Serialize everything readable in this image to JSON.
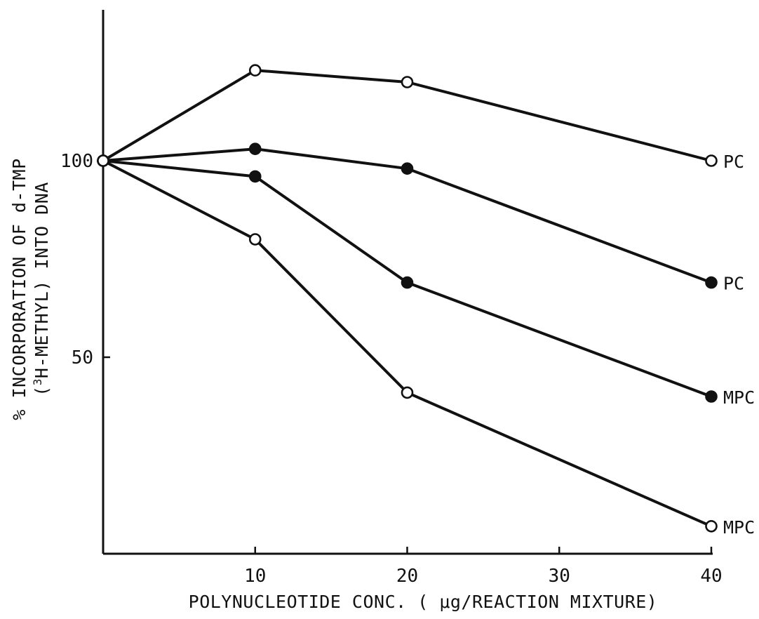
{
  "chart_data": {
    "type": "line",
    "xlabel": "POLYNUCLEOTIDE CONC. ( μg/REACTION MIXTURE)",
    "ylabel_line1": "% INCORPORATION OF d-TMP",
    "ylabel_line2_prefix": "(",
    "ylabel_line2_sup": "3",
    "ylabel_line2_rest": "H-METHYL) INTO DNA",
    "xlim": [
      0,
      40
    ],
    "ylim": [
      0,
      130
    ],
    "x_ticks": [
      10,
      20,
      30,
      40
    ],
    "y_ticks": [
      50,
      100
    ],
    "grid": false,
    "series": [
      {
        "name": "PC",
        "marker": "open",
        "x": [
          0,
          10,
          20,
          40
        ],
        "y": [
          100,
          123,
          120,
          100
        ]
      },
      {
        "name": "PC",
        "marker": "filled",
        "x": [
          0,
          10,
          20,
          40
        ],
        "y": [
          100,
          103,
          98,
          69
        ]
      },
      {
        "name": "MPC",
        "marker": "filled",
        "x": [
          0,
          10,
          20,
          40
        ],
        "y": [
          100,
          96,
          69,
          40
        ]
      },
      {
        "name": "MPC",
        "marker": "open",
        "x": [
          0,
          10,
          20,
          40
        ],
        "y": [
          100,
          80,
          41,
          7
        ]
      }
    ]
  }
}
